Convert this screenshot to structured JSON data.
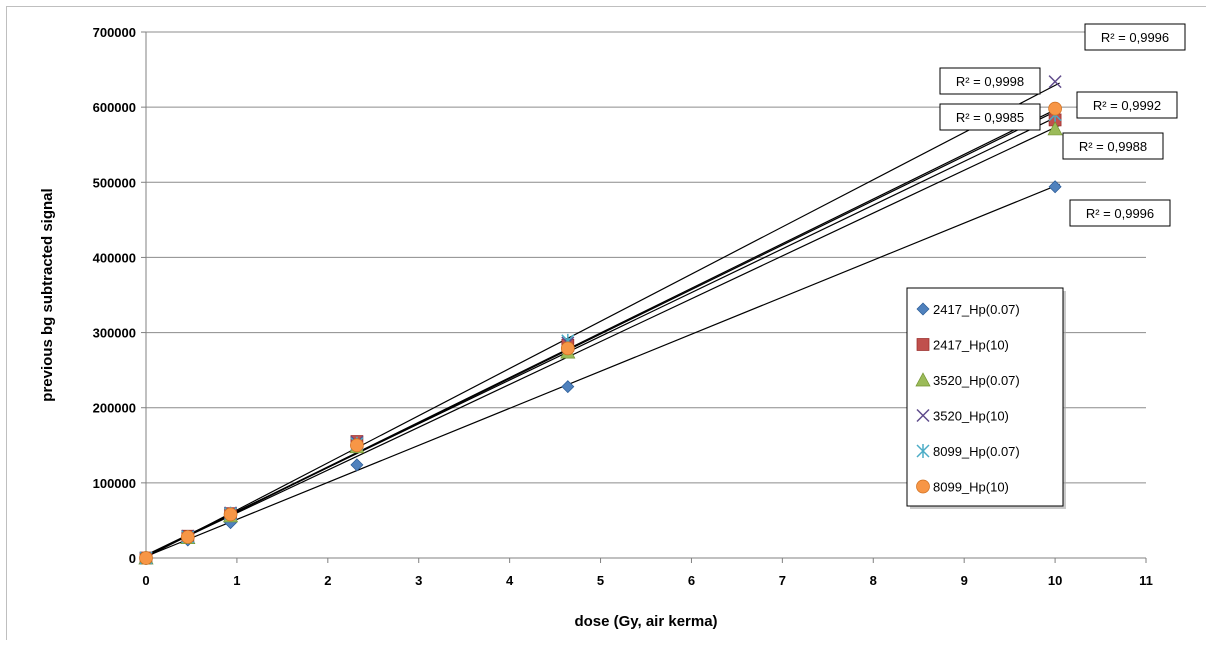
{
  "chart_data": {
    "type": "scatter",
    "title": "",
    "xlabel": "dose (Gy, air kerma)",
    "ylabel": "previous  bg subtracted signal",
    "xlim": [
      0,
      11
    ],
    "ylim": [
      0,
      700000
    ],
    "xticks": [
      0,
      1,
      2,
      3,
      4,
      5,
      6,
      7,
      8,
      9,
      10,
      11
    ],
    "yticks": [
      0,
      100000,
      200000,
      300000,
      400000,
      500000,
      600000,
      700000
    ],
    "grid": "horizontal",
    "legend_position": "right",
    "trendlines": "linear",
    "series": [
      {
        "name": "2417_Hp(0.07)",
        "marker": "diamond",
        "color": "#4f81bd",
        "points": [
          [
            0,
            0
          ],
          [
            0.46,
            24000
          ],
          [
            0.93,
            47000
          ],
          [
            2.32,
            124000
          ],
          [
            4.64,
            228000
          ],
          [
            10,
            494000
          ]
        ],
        "slope": 49300,
        "intercept": 2000,
        "r2": "R² = 0,9996"
      },
      {
        "name": "2417_Hp(10)",
        "marker": "square",
        "color": "#c0504d",
        "points": [
          [
            0,
            0
          ],
          [
            0.46,
            29000
          ],
          [
            0.93,
            59000
          ],
          [
            2.32,
            155000
          ],
          [
            4.64,
            283000
          ],
          [
            10,
            583000
          ]
        ],
        "slope": 58200,
        "intercept": 4000,
        "r2": "R² = 0,9992"
      },
      {
        "name": "3520_Hp(0.07)",
        "marker": "triangle",
        "color": "#9bbb59",
        "points": [
          [
            0,
            0
          ],
          [
            0.46,
            27000
          ],
          [
            0.93,
            56000
          ],
          [
            2.32,
            148000
          ],
          [
            4.64,
            274000
          ],
          [
            10,
            571000
          ]
        ],
        "slope": 57000,
        "intercept": 3000,
        "r2": "R² = 0,9988"
      },
      {
        "name": "3520_Hp(10)",
        "marker": "x",
        "color": "#5f4b8b",
        "points": [
          [
            0,
            0
          ],
          [
            0.46,
            29000
          ],
          [
            0.93,
            60000
          ],
          [
            2.32,
            154000
          ],
          [
            4.64,
            286000
          ],
          [
            10,
            634000
          ]
        ],
        "slope": 62800,
        "intercept": 1000,
        "r2": "R² = 0,9996"
      },
      {
        "name": "8099_Hp(0.07)",
        "marker": "star",
        "color": "#4bacc6",
        "points": [
          [
            0,
            0
          ],
          [
            0.46,
            28000
          ],
          [
            0.93,
            59000
          ],
          [
            2.32,
            152000
          ],
          [
            4.64,
            289000
          ],
          [
            10,
            590000
          ]
        ],
        "slope": 59400,
        "intercept": 2500,
        "r2": "R² = 0,9985"
      },
      {
        "name": "8099_Hp(10)",
        "marker": "circle",
        "color": "#f79646",
        "points": [
          [
            0,
            0
          ],
          [
            0.46,
            28000
          ],
          [
            0.93,
            58000
          ],
          [
            2.32,
            150000
          ],
          [
            4.64,
            279000
          ],
          [
            10,
            598000
          ]
        ],
        "slope": 59200,
        "intercept": 2000,
        "r2": "R² = 0,9998"
      }
    ]
  }
}
